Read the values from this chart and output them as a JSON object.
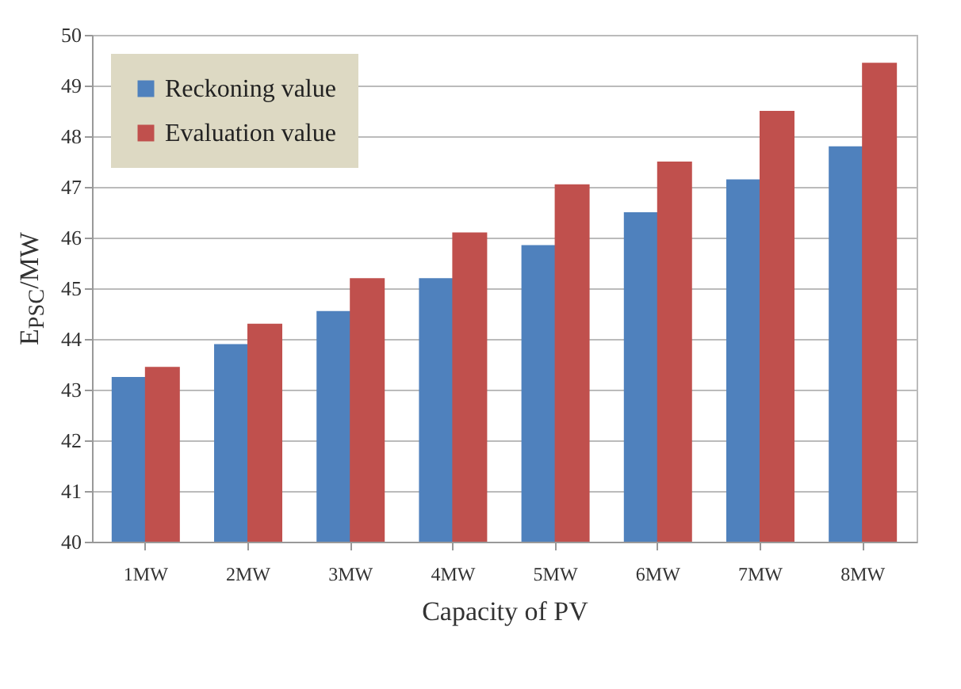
{
  "chart_data": {
    "type": "bar",
    "xlabel": "Capacity of PV",
    "ylabel": "E$_{PSC}$/MW",
    "categories": [
      "1MW",
      "2MW",
      "3MW",
      "4MW",
      "5MW",
      "6MW",
      "7MW",
      "8MW"
    ],
    "series": [
      {
        "name": "Reckoning value",
        "color": "#4f81bd",
        "values": [
          43.25,
          43.9,
          44.55,
          45.2,
          45.85,
          46.5,
          47.15,
          47.8
        ]
      },
      {
        "name": "Evaluation value",
        "color": "#c0504d",
        "values": [
          43.45,
          44.3,
          45.2,
          46.1,
          47.05,
          47.5,
          48.5,
          49.45
        ]
      }
    ],
    "ylim": [
      40,
      50
    ],
    "yticks": [
      40,
      41,
      42,
      43,
      44,
      45,
      46,
      47,
      48,
      49,
      50
    ],
    "grid": "y",
    "legend": "top left"
  }
}
